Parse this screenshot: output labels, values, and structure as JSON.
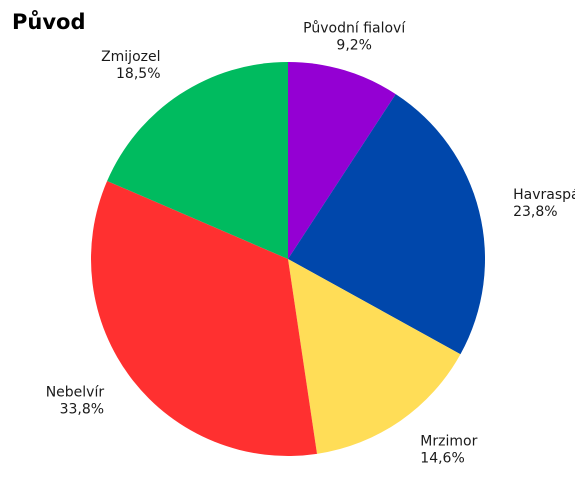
{
  "chart_data": {
    "type": "pie",
    "title": "Původ",
    "slices": [
      {
        "label": "Původní fialoví",
        "value_text": "9,2%",
        "value": 9.2,
        "color": "#9400d3"
      },
      {
        "label": "Havraspár",
        "value_text": "23,8%",
        "value": 23.8,
        "color": "#0047ab"
      },
      {
        "label": "Mrzimor",
        "value_text": "14,6%",
        "value": 14.6,
        "color": "#ffdd57"
      },
      {
        "label": "Nebelvír",
        "value_text": "33,8%",
        "value": 33.8,
        "color": "#ff3030"
      },
      {
        "label": "Zmijozel",
        "value_text": "18,5%",
        "value": 18.5,
        "color": "#00bb5f"
      }
    ],
    "start": "top",
    "direction": "clockwise",
    "legend": "none"
  }
}
